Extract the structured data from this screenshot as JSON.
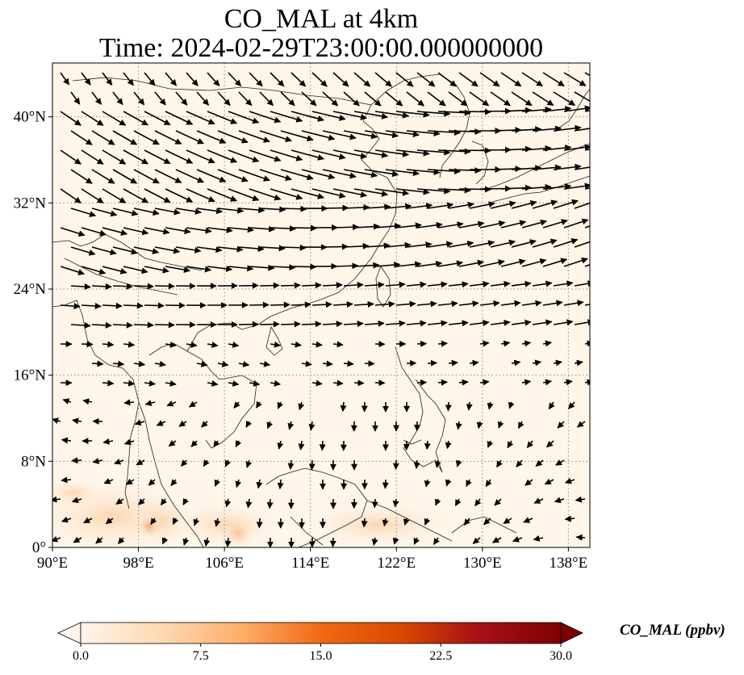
{
  "title": {
    "line1": "CO_MAL at 4km",
    "line2": "Time: 2024-02-29T23:00:00.000000000"
  },
  "map": {
    "lon_ticks": [
      "90°E",
      "98°E",
      "106°E",
      "114°E",
      "122°E",
      "130°E",
      "138°E"
    ],
    "lat_ticks": [
      "0°",
      "8°N",
      "16°N",
      "24°N",
      "32°N",
      "40°N"
    ],
    "lon_range": [
      90,
      140
    ],
    "lat_range": [
      0,
      45
    ],
    "gridlines": "dotted",
    "background_color": "#fff5e8"
  },
  "colorbar": {
    "label": "CO_MAL (ppbv)",
    "ticks": [
      "0.0",
      "7.5",
      "15.0",
      "22.5",
      "30.0"
    ],
    "range": [
      0,
      30
    ],
    "cmap": [
      "#fff5eb",
      "#fdd9b4",
      "#fdae6b",
      "#f16913",
      "#d94801",
      "#a50f15",
      "#7f0000"
    ]
  }
}
